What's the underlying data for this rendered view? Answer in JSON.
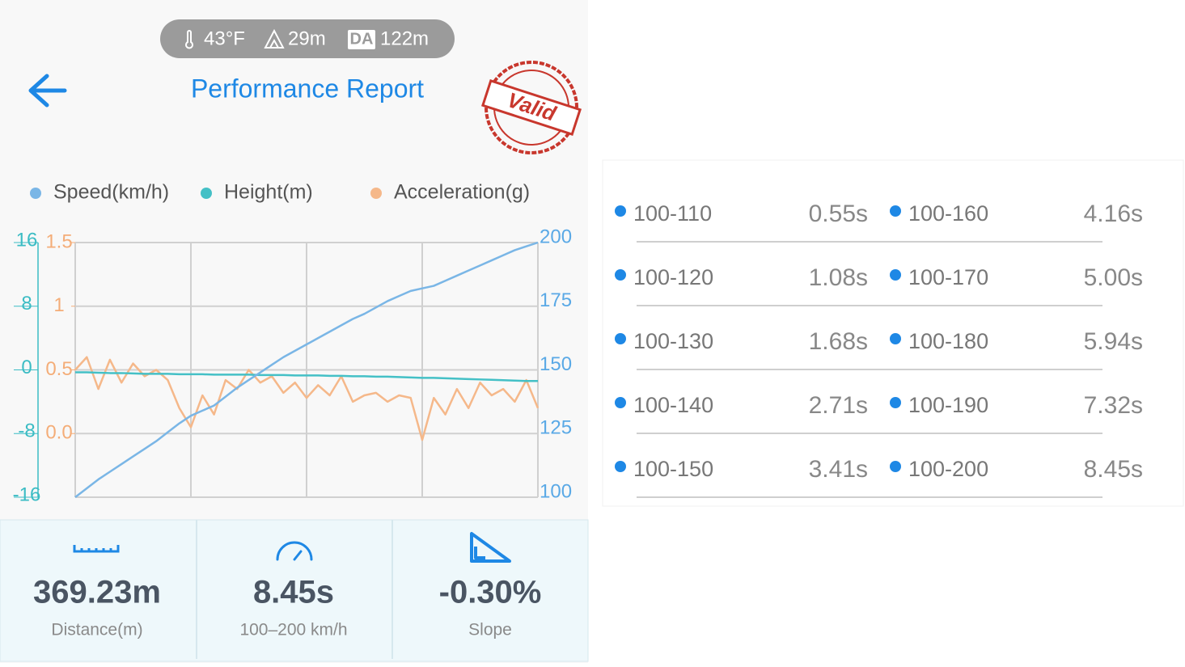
{
  "header": {
    "temperature": "43°F",
    "altitude": "29m",
    "da_badge": "DA",
    "density_altitude": "122m",
    "title": "Performance Report",
    "stamp": "Valid"
  },
  "chart_data": {
    "type": "line",
    "grid": true,
    "ylim": [
      -16,
      16
    ],
    "yticks": [
      16,
      8,
      0,
      -8,
      -16
    ],
    "y_color": "#3bbcc4",
    "y2lim": [
      100,
      200
    ],
    "y2ticks": [
      200,
      175,
      150,
      125,
      100
    ],
    "y2_color": "#5aa9e6",
    "y3lim": [
      -0.5,
      1.5
    ],
    "y3ticks": [
      1.5,
      1,
      0.5,
      {
        "value": 0,
        "label": "0.0"
      }
    ],
    "y3_color": "#f4ad78",
    "series": [
      {
        "name": "Speed(km/h)",
        "color": "#7ab6e6",
        "axis": "y2",
        "values": [
          100,
          103.5,
          107,
          110,
          113,
          116,
          119,
          122,
          125.5,
          129,
          132,
          134,
          136,
          139.5,
          143,
          146,
          149,
          152,
          155,
          157.5,
          160,
          162.5,
          165,
          167.5,
          170,
          172,
          174.5,
          177,
          179,
          181,
          182,
          183,
          185,
          187,
          189,
          191,
          193,
          195,
          197,
          198.5,
          200
        ]
      },
      {
        "name": "Height(m)",
        "color": "#44c0c6",
        "axis": "y",
        "values": [
          -0.3,
          -0.3,
          -0.35,
          -0.4,
          -0.4,
          -0.45,
          -0.5,
          -0.5,
          -0.5,
          -0.55,
          -0.55,
          -0.55,
          -0.6,
          -0.6,
          -0.6,
          -0.6,
          -0.65,
          -0.65,
          -0.65,
          -0.7,
          -0.7,
          -0.7,
          -0.75,
          -0.75,
          -0.8,
          -0.8,
          -0.85,
          -0.85,
          -0.9,
          -0.95,
          -1.0,
          -1.0,
          -1.05,
          -1.1,
          -1.15,
          -1.2,
          -1.25,
          -1.3,
          -1.35,
          -1.4,
          -1.4
        ]
      },
      {
        "name": "Acceleration(g)",
        "color": "#f5b88a",
        "axis": "y3",
        "values": [
          0.5,
          0.6,
          0.35,
          0.58,
          0.4,
          0.55,
          0.45,
          0.5,
          0.42,
          0.2,
          0.05,
          0.3,
          0.15,
          0.42,
          0.35,
          0.5,
          0.4,
          0.45,
          0.32,
          0.4,
          0.28,
          0.38,
          0.3,
          0.45,
          0.25,
          0.3,
          0.32,
          0.25,
          0.3,
          0.28,
          -0.05,
          0.28,
          0.15,
          0.35,
          0.2,
          0.4,
          0.3,
          0.35,
          0.25,
          0.42,
          0.2
        ]
      }
    ]
  },
  "stats": [
    {
      "value": "369.23m",
      "label": "Distance(m)"
    },
    {
      "value": "8.45s",
      "label": "100–200 km/h"
    },
    {
      "value": "-0.30%",
      "label": "Slope"
    }
  ],
  "splits": [
    [
      {
        "range": "100-110",
        "time": "0.55s"
      },
      {
        "range": "100-160",
        "time": "4.16s"
      }
    ],
    [
      {
        "range": "100-120",
        "time": "1.08s"
      },
      {
        "range": "100-170",
        "time": "5.00s"
      }
    ],
    [
      {
        "range": "100-130",
        "time": "1.68s"
      },
      {
        "range": "100-180",
        "time": "5.94s"
      }
    ],
    [
      {
        "range": "100-140",
        "time": "2.71s"
      },
      {
        "range": "100-190",
        "time": "7.32s"
      }
    ],
    [
      {
        "range": "100-150",
        "time": "3.41s"
      },
      {
        "range": "100-200",
        "time": "8.45s"
      }
    ]
  ]
}
